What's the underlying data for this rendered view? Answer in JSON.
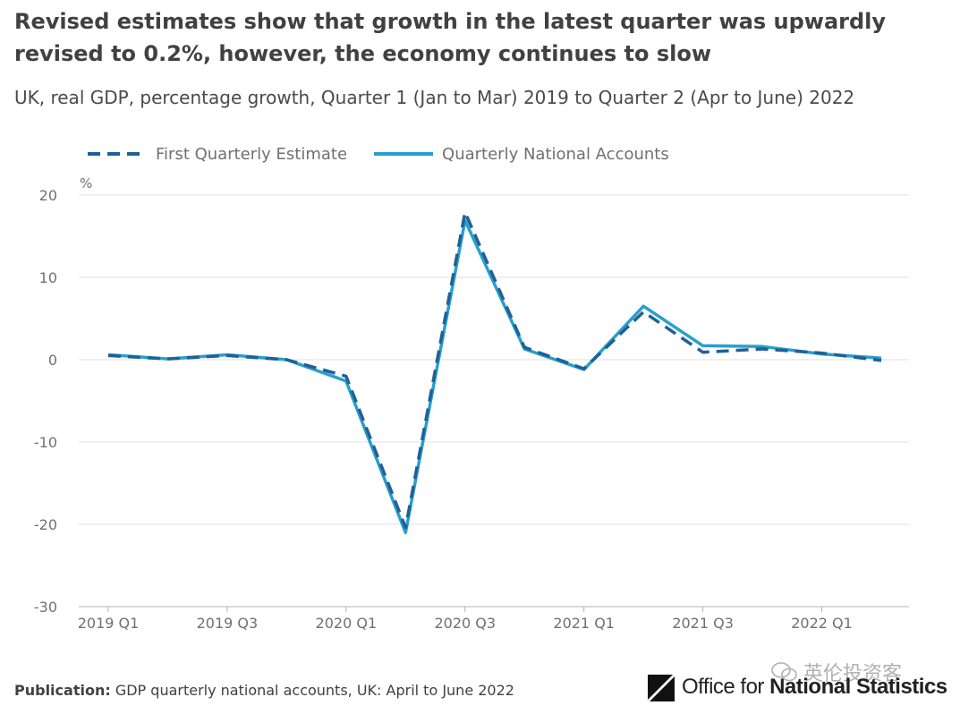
{
  "header": {
    "title": "Revised estimates show that growth in the latest quarter was upwardly revised to 0.2%, however, the economy continues to slow",
    "subtitle": "UK, real GDP, percentage growth, Quarter 1 (Jan to Mar) 2019 to Quarter 2 (Apr to June) 2022"
  },
  "footer": {
    "publication_label": "Publication:",
    "publication_text": "GDP quarterly national accounts, UK: April to June 2022"
  },
  "logo": {
    "text_light": "Office for ",
    "text_strong": "National Statistics"
  },
  "watermark": {
    "text": "英伦投资客",
    "icon": "wechat-icon"
  },
  "colors": {
    "first_estimate": "#206095",
    "national_accounts": "#27a0cc",
    "grid": "#e2e2e3",
    "axis_text": "#707071"
  },
  "chart_data": {
    "type": "line",
    "title": "Revised estimates show that growth in the latest quarter was upwardly revised to 0.2%, however, the economy continues to slow",
    "subtitle": "UK, real GDP, percentage growth, Quarter 1 (Jan to Mar) 2019 to Quarter 2 (Apr to June) 2022",
    "ylabel": "%",
    "xlabel": "",
    "ylim": [
      -30,
      20
    ],
    "yticks": [
      20,
      10,
      0,
      -10,
      -20,
      -30
    ],
    "grid": true,
    "legend_position": "top-left",
    "x": [
      "2019 Q1",
      "2019 Q2",
      "2019 Q3",
      "2019 Q4",
      "2020 Q1",
      "2020 Q2",
      "2020 Q3",
      "2020 Q4",
      "2021 Q1",
      "2021 Q2",
      "2021 Q3",
      "2021 Q4",
      "2022 Q1",
      "2022 Q2"
    ],
    "xtick_labels": [
      "2019 Q1",
      "2019 Q3",
      "2020 Q1",
      "2020 Q3",
      "2021 Q1",
      "2021 Q3",
      "2022 Q1"
    ],
    "series": [
      {
        "name": "First Quarterly Estimate",
        "style": "dashed",
        "color": "#206095",
        "values": [
          0.5,
          0.1,
          0.5,
          0.0,
          -2.0,
          -20.4,
          17.9,
          1.5,
          -1.1,
          5.8,
          0.9,
          1.3,
          0.8,
          -0.1
        ]
      },
      {
        "name": "Quarterly National Accounts",
        "style": "solid",
        "color": "#27a0cc",
        "values": [
          0.6,
          0.1,
          0.6,
          0.0,
          -2.6,
          -21.0,
          16.9,
          1.3,
          -1.2,
          6.5,
          1.7,
          1.6,
          0.7,
          0.2
        ]
      }
    ]
  }
}
